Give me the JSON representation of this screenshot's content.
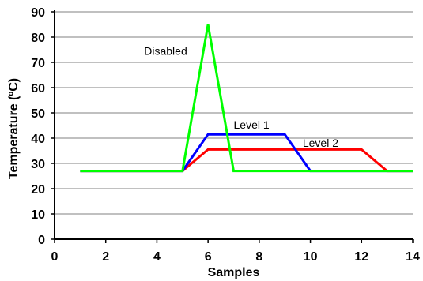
{
  "chart_data": {
    "type": "line",
    "xlabel": "Samples",
    "ylabel": "Temperature (ºC)",
    "xlim": [
      0,
      14
    ],
    "ylim": [
      0,
      90
    ],
    "xticks": [
      0,
      2,
      4,
      6,
      8,
      10,
      12,
      14
    ],
    "yticks": [
      0,
      10,
      20,
      30,
      40,
      50,
      60,
      70,
      80,
      90
    ],
    "grid": "horizontal",
    "series": [
      {
        "name": "Level 2",
        "color": "#ff0000",
        "x": [
          1,
          2,
          3,
          4,
          5,
          6,
          7,
          8,
          9,
          10,
          11,
          12,
          13,
          14
        ],
        "y": [
          27,
          27,
          27,
          27,
          27,
          35.5,
          35.5,
          35.5,
          35.5,
          35.5,
          35.5,
          35.5,
          27,
          27
        ]
      },
      {
        "name": "Level 1",
        "color": "#0000ff",
        "x": [
          1,
          2,
          3,
          4,
          5,
          6,
          7,
          8,
          9,
          10,
          11,
          12,
          13,
          14
        ],
        "y": [
          27,
          27,
          27,
          27,
          27,
          41.5,
          41.5,
          41.5,
          41.5,
          27,
          27,
          27,
          27,
          27
        ]
      },
      {
        "name": "Disabled",
        "color": "#00ff00",
        "x": [
          1,
          2,
          3,
          4,
          5,
          6,
          7,
          8,
          9,
          10,
          11,
          12,
          13,
          14
        ],
        "y": [
          27,
          27,
          27,
          27,
          27,
          85,
          27,
          27,
          27,
          27,
          27,
          27,
          27,
          27
        ]
      }
    ],
    "annotations": [
      {
        "text": "Disabled",
        "x": 3.5,
        "y": 73
      },
      {
        "text": "Level 1",
        "x": 7,
        "y": 43.8
      },
      {
        "text": "Level 2",
        "x": 9.7,
        "y": 36.5
      }
    ]
  }
}
